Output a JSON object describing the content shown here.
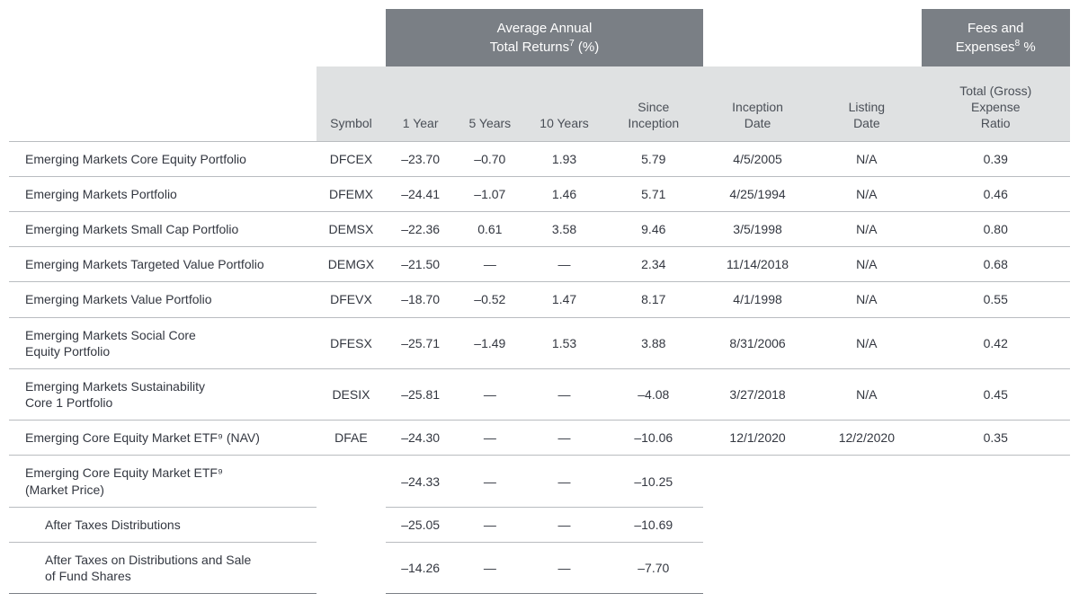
{
  "header": {
    "returns_group": "Average Annual\nTotal Returns",
    "returns_sup": "7",
    "returns_suffix": " (%)",
    "fees_group": "Fees and\nExpenses",
    "fees_sup": "8",
    "fees_suffix": " %"
  },
  "columns": {
    "symbol": "Symbol",
    "y1": "1 Year",
    "y5": "5 Years",
    "y10": "10 Years",
    "since": "Since\nInception",
    "inception": "Inception\nDate",
    "listing": "Listing\nDate",
    "expense": "Total (Gross)\nExpense\nRatio"
  },
  "rows": [
    {
      "name": "Emerging Markets Core Equity Portfolio",
      "symbol": "DFCEX",
      "y1": "–23.70",
      "y5": "–0.70",
      "y10": "1.93",
      "since": "5.79",
      "inception": "4/5/2005",
      "listing": "N/A",
      "expense": "0.39"
    },
    {
      "name": "Emerging Markets Portfolio",
      "symbol": "DFEMX",
      "y1": "–24.41",
      "y5": "–1.07",
      "y10": "1.46",
      "since": "5.71",
      "inception": "4/25/1994",
      "listing": "N/A",
      "expense": "0.46"
    },
    {
      "name": "Emerging Markets Small Cap Portfolio",
      "symbol": "DEMSX",
      "y1": "–22.36",
      "y5": "0.61",
      "y10": "3.58",
      "since": "9.46",
      "inception": "3/5/1998",
      "listing": "N/A",
      "expense": "0.80"
    },
    {
      "name": "Emerging Markets Targeted Value Portfolio",
      "symbol": "DEMGX",
      "y1": "–21.50",
      "y5": "—",
      "y10": "—",
      "since": "2.34",
      "inception": "11/14/2018",
      "listing": "N/A",
      "expense": "0.68"
    },
    {
      "name": "Emerging Markets Value Portfolio",
      "symbol": "DFEVX",
      "y1": "–18.70",
      "y5": "–0.52",
      "y10": "1.47",
      "since": "8.17",
      "inception": "4/1/1998",
      "listing": "N/A",
      "expense": "0.55"
    },
    {
      "name": "Emerging Markets Social Core\nEquity Portfolio",
      "symbol": "DFESX",
      "y1": "–25.71",
      "y5": "–1.49",
      "y10": "1.53",
      "since": "3.88",
      "inception": "8/31/2006",
      "listing": "N/A",
      "expense": "0.42"
    },
    {
      "name": "Emerging Markets Sustainability\nCore 1 Portfolio",
      "symbol": "DESIX",
      "y1": "–25.81",
      "y5": "—",
      "y10": "—",
      "since": "–4.08",
      "inception": "3/27/2018",
      "listing": "N/A",
      "expense": "0.45"
    },
    {
      "name": "Emerging Core Equity Market ETF⁹ (NAV)",
      "symbol": "DFAE",
      "y1": "–24.30",
      "y5": "—",
      "y10": "—",
      "since": "–10.06",
      "inception": "12/1/2020",
      "listing": "12/2/2020",
      "expense": "0.35"
    }
  ],
  "tail": [
    {
      "name": "Emerging Core Equity Market ETF⁹\n(Market Price)",
      "indent": false,
      "y1": "–24.33",
      "y5": "—",
      "y10": "—",
      "since": "–10.25"
    },
    {
      "name": "After Taxes Distributions",
      "indent": true,
      "y1": "–25.05",
      "y5": "—",
      "y10": "—",
      "since": "–10.69"
    },
    {
      "name": "After Taxes on Distributions and Sale\nof Fund Shares",
      "indent": true,
      "y1": "–14.26",
      "y5": "—",
      "y10": "—",
      "since": "–7.70"
    }
  ],
  "style": {
    "banner_bg": "#7a7f85",
    "banner_fg": "#ffffff",
    "subhead_bg": "#dfe1e2",
    "border_color": "#b9bcc0",
    "text_color": "#333740",
    "font_size_base": 14,
    "font_size_banner": 15
  }
}
